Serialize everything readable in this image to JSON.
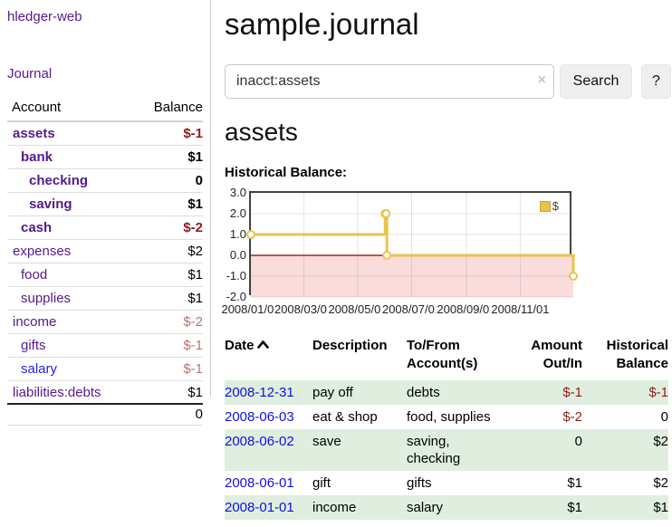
{
  "colors": {
    "link_visited": "#551A8B",
    "link_unvisited": "#2222DD",
    "negative_strong": "#911B1B",
    "negative_muted": "#C17070",
    "row_stripe_green": "#DFEEDE",
    "chart_series_gold": "#E9C44D",
    "chart_negative_fill": "#FBDCDC",
    "chart_zero_line": "#8B0000"
  },
  "sidebar": {
    "app_title": "hledger-web",
    "nav": {
      "journal": "Journal"
    },
    "table": {
      "headers": {
        "account": "Account",
        "balance": "Balance"
      },
      "accounts": [
        {
          "name": "assets",
          "level": 1,
          "bold": true,
          "link": "visited",
          "balance": "$-1",
          "balance_class": "neg"
        },
        {
          "name": "bank",
          "level": 2,
          "bold": true,
          "link": "visited",
          "balance": "$1",
          "balance_class": ""
        },
        {
          "name": "checking",
          "level": 3,
          "bold": true,
          "link": "visited",
          "balance": "0",
          "balance_class": ""
        },
        {
          "name": "saving",
          "level": 3,
          "bold": true,
          "link": "visited",
          "balance": "$1",
          "balance_class": ""
        },
        {
          "name": "cash",
          "level": 2,
          "bold": true,
          "link": "visited",
          "balance": "$-2",
          "balance_class": "neg"
        },
        {
          "name": "expenses",
          "level": 1,
          "bold": false,
          "link": "visited",
          "balance": "$2",
          "balance_class": ""
        },
        {
          "name": "food",
          "level": 2,
          "bold": false,
          "link": "visited",
          "balance": "$1",
          "balance_class": ""
        },
        {
          "name": "supplies",
          "level": 2,
          "bold": false,
          "link": "visited",
          "balance": "$1",
          "balance_class": ""
        },
        {
          "name": "income",
          "level": 1,
          "bold": false,
          "link": "visited",
          "balance": "$-2",
          "balance_class": "negm"
        },
        {
          "name": "gifts",
          "level": 2,
          "bold": false,
          "link": "visited",
          "balance": "$-1",
          "balance_class": "negm"
        },
        {
          "name": "salary",
          "level": 2,
          "bold": false,
          "link": "unvisited",
          "balance": "$-1",
          "balance_class": "negm"
        },
        {
          "name": "liabilities:debts",
          "level": 1,
          "bold": false,
          "link": "visited",
          "balance": "$1",
          "balance_class": ""
        }
      ],
      "total": "0"
    }
  },
  "main": {
    "title": "sample.journal",
    "search": {
      "value": "inacct:assets",
      "clear_icon": "×",
      "button": "Search",
      "help_button": "?"
    },
    "account_heading": "assets",
    "chart_label": "Historical Balance:"
  },
  "chart_data": {
    "type": "line",
    "step": true,
    "title": "Historical Balance:",
    "legend": "$",
    "legend_position": "top-right",
    "grid": true,
    "ylim": [
      -2.0,
      3.0
    ],
    "yticks": [
      "3.0",
      "2.0",
      "1.0",
      "0.0",
      "-1.0",
      "-2.0"
    ],
    "xticks": [
      "2008/01/01",
      "2008/03/01",
      "2008/05/01",
      "2008/07/01",
      "2008/09/01",
      "2008/11/01"
    ],
    "x_range": [
      "2008-01-01",
      "2008-12-31"
    ],
    "series": [
      {
        "name": "$",
        "points": [
          {
            "x": "2008-01-01",
            "y": 1
          },
          {
            "x": "2008-06-01",
            "y": 2
          },
          {
            "x": "2008-06-02",
            "y": 2
          },
          {
            "x": "2008-06-03",
            "y": 0
          },
          {
            "x": "2008-12-31",
            "y": -1
          }
        ]
      }
    ]
  },
  "register": {
    "headers": [
      {
        "lines": [
          "Date"
        ],
        "align": "left",
        "sorted": "asc"
      },
      {
        "lines": [
          "Description"
        ],
        "align": "left"
      },
      {
        "lines": [
          "To/From",
          "Account(s)"
        ],
        "align": "left"
      },
      {
        "lines": [
          "Amount",
          "Out/In"
        ],
        "align": "right"
      },
      {
        "lines": [
          "Historical",
          "Balance"
        ],
        "align": "right"
      }
    ],
    "rows": [
      {
        "date": "2008-12-31",
        "description": "pay off",
        "accounts": "debts",
        "amount": "$-1",
        "amount_negative": true,
        "balance": "$-1",
        "balance_negative": true
      },
      {
        "date": "2008-06-03",
        "description": "eat & shop",
        "accounts": "food, supplies",
        "amount": "$-2",
        "amount_negative": true,
        "balance": "0",
        "balance_negative": false
      },
      {
        "date": "2008-06-02",
        "description": "save",
        "accounts": "saving, checking",
        "amount": "0",
        "amount_negative": false,
        "balance": "$2",
        "balance_negative": false
      },
      {
        "date": "2008-06-01",
        "description": "gift",
        "accounts": "gifts",
        "amount": "$1",
        "amount_negative": false,
        "balance": "$2",
        "balance_negative": false
      },
      {
        "date": "2008-01-01",
        "description": "income",
        "accounts": "salary",
        "amount": "$1",
        "amount_negative": false,
        "balance": "$1",
        "balance_negative": false
      }
    ]
  }
}
